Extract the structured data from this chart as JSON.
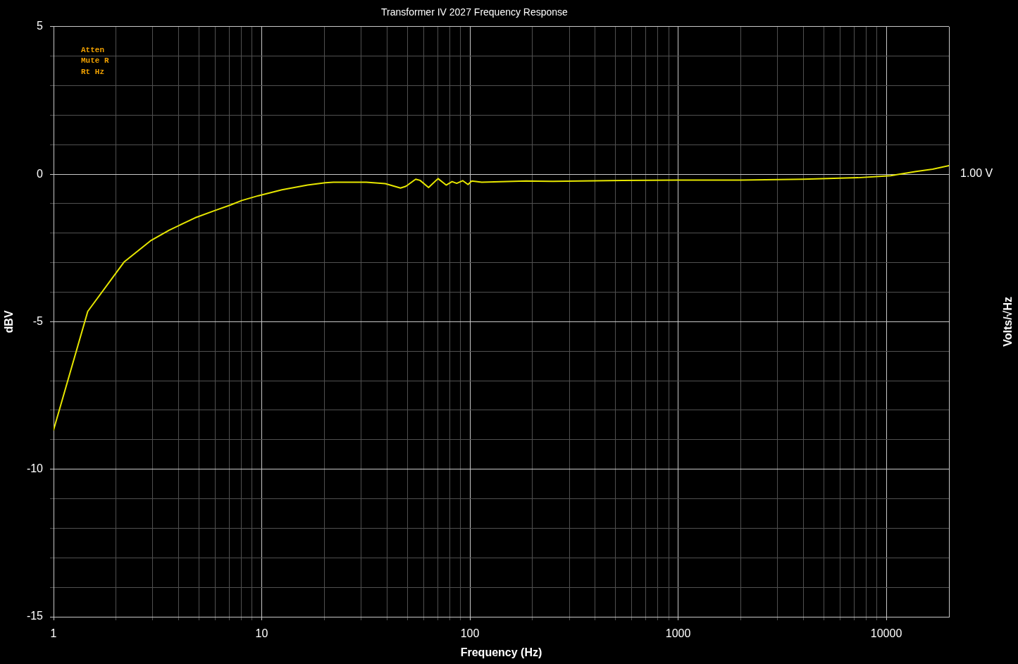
{
  "chart_data": {
    "type": "line",
    "title": "Transformer IV 2027 Frequency Response",
    "xlabel": "Frequency (Hz)",
    "ylabel": "dBV",
    "y2label": "Volts/√Hz",
    "annotations": [
      "Atten",
      "Mute R",
      "Rt Hz",
      "1.00 V"
    ],
    "x": [
      1,
      1.46,
      2.18,
      2.92,
      3.59,
      4.78,
      5.96,
      7.05,
      8.03,
      9.63,
      12.5,
      16.6,
      20.2,
      22.1,
      31.8,
      39.2,
      46.4,
      49.3,
      54.9,
      57.6,
      63.3,
      70.3,
      76.9,
      82.1,
      86.4,
      92.3,
      97.9,
      102,
      114,
      186,
      250,
      542,
      1000,
      2000,
      3990,
      7320,
      10500,
      13900,
      16700,
      20000
    ],
    "values": [
      -8.67,
      -4.65,
      -2.98,
      -2.26,
      -1.9,
      -1.48,
      -1.23,
      -1.05,
      -0.89,
      -0.73,
      -0.53,
      -0.37,
      -0.29,
      -0.27,
      -0.27,
      -0.32,
      -0.47,
      -0.41,
      -0.17,
      -0.21,
      -0.45,
      -0.15,
      -0.37,
      -0.25,
      -0.31,
      -0.22,
      -0.35,
      -0.23,
      -0.27,
      -0.23,
      -0.24,
      -0.21,
      -0.2,
      -0.2,
      -0.17,
      -0.12,
      -0.05,
      0.09,
      0.17,
      0.29
    ],
    "color": "#e6e600",
    "log": "x",
    "xlim": [
      1,
      20000
    ],
    "xticks": [
      1,
      {
        "value": 2,
        "label": null
      },
      {
        "value": 3,
        "label": null
      },
      {
        "value": 4,
        "label": null
      },
      {
        "value": 5,
        "label": null
      },
      {
        "value": 6,
        "label": null
      },
      {
        "value": 7,
        "label": null
      },
      {
        "value": 8,
        "label": null
      },
      {
        "value": 9,
        "label": null
      },
      10,
      {
        "value": 20,
        "label": null
      },
      {
        "value": 30,
        "label": null
      },
      {
        "value": 40,
        "label": null
      },
      {
        "value": 50,
        "label": null
      },
      {
        "value": 60,
        "label": null
      },
      {
        "value": 70,
        "label": null
      },
      {
        "value": 80,
        "label": null
      },
      {
        "value": 90,
        "label": null
      },
      100,
      {
        "value": 200,
        "label": null
      },
      {
        "value": 300,
        "label": null
      },
      {
        "value": 400,
        "label": null
      },
      {
        "value": 500,
        "label": null
      },
      {
        "value": 600,
        "label": null
      },
      {
        "value": 700,
        "label": null
      },
      {
        "value": 800,
        "label": null
      },
      {
        "value": 900,
        "label": null
      },
      1000,
      {
        "value": 2000,
        "label": null
      },
      {
        "value": 3000,
        "label": null
      },
      {
        "value": 4000,
        "label": null
      },
      {
        "value": 5000,
        "label": null
      },
      {
        "value": 6000,
        "label": null
      },
      {
        "value": 7000,
        "label": null
      },
      {
        "value": 8000,
        "label": null
      },
      {
        "value": 9000,
        "label": null
      },
      10000
    ],
    "ylim": [
      -15,
      5
    ],
    "yticks": [
      -15,
      {
        "value": -14,
        "label": null
      },
      {
        "value": -13,
        "label": null
      },
      {
        "value": -12,
        "label": null
      },
      {
        "value": -11,
        "label": null
      },
      -10,
      {
        "value": -9,
        "label": null
      },
      {
        "value": -8,
        "label": null
      },
      {
        "value": -7,
        "label": null
      },
      {
        "value": -6,
        "label": null
      },
      -5,
      {
        "value": -4,
        "label": null
      },
      {
        "value": -3,
        "label": null
      },
      {
        "value": -2,
        "label": null
      },
      {
        "value": -1,
        "label": null
      },
      0,
      {
        "value": 1,
        "label": null
      },
      {
        "value": 2,
        "label": null
      },
      {
        "value": 3,
        "label": null
      },
      {
        "value": 4,
        "label": null
      },
      5
    ],
    "grid": true
  }
}
